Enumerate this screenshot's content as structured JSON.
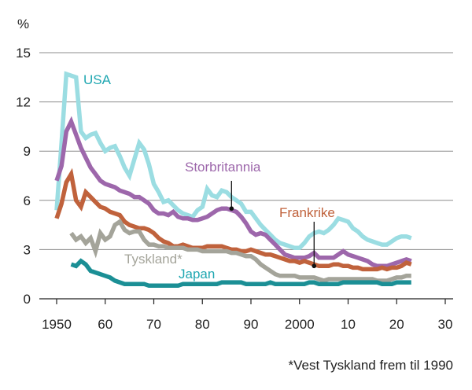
{
  "chart_data": {
    "type": "line",
    "title": "",
    "xlabel": "",
    "ylabel": "%",
    "xlim": [
      1950,
      2030
    ],
    "ylim": [
      0,
      15
    ],
    "x_ticks": [
      1950,
      1960,
      1970,
      1980,
      1990,
      2000,
      2010,
      2020,
      2030
    ],
    "x_tick_labels": [
      "1950",
      "60",
      "70",
      "80",
      "90",
      "2000",
      "10",
      "20",
      "30"
    ],
    "y_ticks": [
      0,
      3,
      6,
      9,
      12,
      15
    ],
    "y_tick_labels": [
      "0",
      "3",
      "6",
      "9",
      "12",
      "15"
    ],
    "grid": "horizontal",
    "footnote": "*Vest Tyskland frem til 1990",
    "series": [
      {
        "name": "USA",
        "color": "#9bdde2",
        "label_color": "#1fa7b1",
        "x": [
          1950,
          1951,
          1952,
          1953,
          1954,
          1955,
          1956,
          1957,
          1958,
          1959,
          1960,
          1961,
          1962,
          1963,
          1964,
          1965,
          1966,
          1967,
          1968,
          1969,
          1970,
          1971,
          1972,
          1973,
          1974,
          1975,
          1976,
          1977,
          1978,
          1979,
          1980,
          1981,
          1982,
          1983,
          1984,
          1985,
          1986,
          1987,
          1988,
          1989,
          1990,
          1991,
          1992,
          1993,
          1994,
          1995,
          1996,
          1997,
          1998,
          1999,
          2000,
          2001,
          2002,
          2003,
          2004,
          2005,
          2006,
          2007,
          2008,
          2009,
          2010,
          2011,
          2012,
          2013,
          2014,
          2015,
          2016,
          2017,
          2018,
          2019,
          2020,
          2021,
          2022,
          2023
        ],
        "values": [
          5.4,
          9.5,
          13.7,
          13.6,
          13.5,
          10.2,
          9.8,
          10.0,
          10.1,
          9.5,
          9.0,
          9.2,
          9.3,
          8.7,
          8.0,
          7.5,
          8.5,
          9.5,
          9.1,
          8.2,
          7.0,
          6.5,
          5.9,
          6.0,
          5.7,
          5.4,
          5.2,
          5.1,
          5.0,
          5.4,
          5.6,
          6.7,
          6.3,
          6.2,
          6.6,
          6.5,
          6.2,
          6.0,
          5.8,
          5.3,
          5.3,
          4.9,
          4.5,
          4.2,
          3.9,
          3.6,
          3.4,
          3.3,
          3.2,
          3.1,
          3.1,
          3.4,
          3.8,
          4.0,
          4.1,
          4.0,
          4.2,
          4.5,
          4.9,
          4.8,
          4.7,
          4.3,
          4.1,
          3.8,
          3.6,
          3.5,
          3.4,
          3.3,
          3.3,
          3.5,
          3.7,
          3.8,
          3.8,
          3.7
        ]
      },
      {
        "name": "Storbritannia",
        "color": "#9d67ab",
        "label_color": "#9d67ab",
        "x": [
          1950,
          1951,
          1952,
          1953,
          1954,
          1955,
          1956,
          1957,
          1958,
          1959,
          1960,
          1961,
          1962,
          1963,
          1964,
          1965,
          1966,
          1967,
          1968,
          1969,
          1970,
          1971,
          1972,
          1973,
          1974,
          1975,
          1976,
          1977,
          1978,
          1979,
          1980,
          1981,
          1982,
          1983,
          1984,
          1985,
          1986,
          1987,
          1988,
          1989,
          1990,
          1991,
          1992,
          1993,
          1994,
          1995,
          1996,
          1997,
          1998,
          1999,
          2000,
          2001,
          2002,
          2003,
          2004,
          2005,
          2006,
          2007,
          2008,
          2009,
          2010,
          2011,
          2012,
          2013,
          2014,
          2015,
          2016,
          2017,
          2018,
          2019,
          2020,
          2021,
          2022,
          2023
        ],
        "values": [
          7.2,
          8.1,
          10.2,
          10.8,
          10.0,
          9.2,
          8.6,
          8.0,
          7.6,
          7.2,
          7.0,
          6.9,
          6.8,
          6.6,
          6.5,
          6.4,
          6.2,
          6.2,
          6.0,
          5.8,
          5.4,
          5.2,
          5.2,
          5.1,
          5.3,
          5.0,
          4.9,
          4.9,
          4.8,
          4.8,
          4.9,
          5.0,
          5.2,
          5.4,
          5.5,
          5.5,
          5.4,
          5.3,
          5.0,
          4.6,
          4.1,
          3.9,
          4.0,
          3.9,
          3.6,
          3.3,
          3.0,
          2.7,
          2.6,
          2.5,
          2.5,
          2.5,
          2.6,
          2.8,
          2.5,
          2.5,
          2.5,
          2.5,
          2.7,
          2.9,
          2.7,
          2.6,
          2.5,
          2.4,
          2.3,
          2.1,
          2.0,
          2.0,
          2.0,
          2.1,
          2.2,
          2.3,
          2.4,
          2.3
        ]
      },
      {
        "name": "Frankrike",
        "color": "#c0623c",
        "label_color": "#c0623c",
        "x": [
          1950,
          1951,
          1952,
          1953,
          1954,
          1955,
          1956,
          1957,
          1958,
          1959,
          1960,
          1961,
          1962,
          1963,
          1964,
          1965,
          1966,
          1967,
          1968,
          1969,
          1970,
          1971,
          1972,
          1973,
          1974,
          1975,
          1976,
          1977,
          1978,
          1979,
          1980,
          1981,
          1982,
          1983,
          1984,
          1985,
          1986,
          1987,
          1988,
          1989,
          1990,
          1991,
          1992,
          1993,
          1994,
          1995,
          1996,
          1997,
          1998,
          1999,
          2000,
          2001,
          2002,
          2003,
          2004,
          2005,
          2006,
          2007,
          2008,
          2009,
          2010,
          2011,
          2012,
          2013,
          2014,
          2015,
          2016,
          2017,
          2018,
          2019,
          2020,
          2021,
          2022,
          2023
        ],
        "values": [
          4.9,
          5.8,
          7.1,
          7.6,
          6.0,
          5.6,
          6.5,
          6.2,
          5.9,
          5.6,
          5.5,
          5.3,
          5.2,
          5.1,
          4.7,
          4.5,
          4.4,
          4.3,
          4.3,
          4.2,
          4.0,
          3.7,
          3.5,
          3.4,
          3.2,
          3.2,
          3.3,
          3.2,
          3.1,
          3.1,
          3.1,
          3.2,
          3.2,
          3.2,
          3.2,
          3.1,
          3.0,
          3.0,
          2.9,
          2.9,
          3.0,
          2.9,
          2.8,
          2.7,
          2.7,
          2.6,
          2.5,
          2.4,
          2.3,
          2.3,
          2.2,
          2.3,
          2.2,
          2.1,
          2.0,
          2.0,
          2.0,
          2.1,
          2.1,
          2.0,
          2.0,
          1.9,
          1.9,
          1.8,
          1.8,
          1.8,
          1.8,
          1.9,
          1.8,
          1.9,
          1.9,
          2.0,
          2.2,
          2.1
        ]
      },
      {
        "name": "Tyskland*",
        "color": "#a4a49a",
        "label_color": "#a4a49a",
        "x": [
          1953,
          1954,
          1955,
          1956,
          1957,
          1958,
          1959,
          1960,
          1961,
          1962,
          1963,
          1964,
          1965,
          1966,
          1967,
          1968,
          1969,
          1970,
          1971,
          1972,
          1973,
          1974,
          1975,
          1976,
          1977,
          1978,
          1979,
          1980,
          1981,
          1982,
          1983,
          1984,
          1985,
          1986,
          1987,
          1988,
          1989,
          1990,
          1991,
          1992,
          1993,
          1994,
          1995,
          1996,
          1997,
          1998,
          1999,
          2000,
          2001,
          2002,
          2003,
          2004,
          2005,
          2006,
          2007,
          2008,
          2009,
          2010,
          2011,
          2012,
          2013,
          2014,
          2015,
          2016,
          2017,
          2018,
          2019,
          2020,
          2021,
          2022,
          2023
        ],
        "values": [
          4.0,
          3.6,
          3.8,
          3.4,
          3.7,
          2.9,
          4.0,
          3.6,
          3.8,
          4.5,
          4.7,
          4.2,
          4.0,
          4.1,
          4.1,
          3.6,
          3.3,
          3.3,
          3.2,
          3.2,
          3.1,
          3.1,
          3.1,
          3.1,
          3.0,
          3.0,
          3.0,
          2.9,
          2.9,
          2.9,
          2.9,
          2.9,
          2.9,
          2.8,
          2.8,
          2.7,
          2.6,
          2.6,
          2.4,
          2.1,
          1.9,
          1.7,
          1.5,
          1.4,
          1.4,
          1.4,
          1.4,
          1.3,
          1.3,
          1.3,
          1.3,
          1.2,
          1.1,
          1.2,
          1.2,
          1.2,
          1.2,
          1.2,
          1.2,
          1.2,
          1.2,
          1.2,
          1.2,
          1.1,
          1.1,
          1.1,
          1.2,
          1.3,
          1.3,
          1.4,
          1.4
        ]
      },
      {
        "name": "Japan",
        "color": "#1b8f95",
        "label_color": "#1fa7b1",
        "x": [
          1953,
          1954,
          1955,
          1956,
          1957,
          1958,
          1959,
          1960,
          1961,
          1962,
          1963,
          1964,
          1965,
          1966,
          1967,
          1968,
          1969,
          1970,
          1971,
          1972,
          1973,
          1974,
          1975,
          1976,
          1977,
          1978,
          1979,
          1980,
          1981,
          1982,
          1983,
          1984,
          1985,
          1986,
          1987,
          1988,
          1989,
          1990,
          1991,
          1992,
          1993,
          1994,
          1995,
          1996,
          1997,
          1998,
          1999,
          2000,
          2001,
          2002,
          2003,
          2004,
          2005,
          2006,
          2007,
          2008,
          2009,
          2010,
          2011,
          2012,
          2013,
          2014,
          2015,
          2016,
          2017,
          2018,
          2019,
          2020,
          2021,
          2022,
          2023
        ],
        "values": [
          2.1,
          2.0,
          2.3,
          2.1,
          1.7,
          1.6,
          1.5,
          1.4,
          1.3,
          1.1,
          1.0,
          0.9,
          0.9,
          0.9,
          0.9,
          0.9,
          0.8,
          0.8,
          0.8,
          0.8,
          0.8,
          0.8,
          0.8,
          0.9,
          0.9,
          0.9,
          0.9,
          0.9,
          0.9,
          0.9,
          0.9,
          1.0,
          1.0,
          1.0,
          1.0,
          1.0,
          0.9,
          0.9,
          0.9,
          0.9,
          0.9,
          1.0,
          0.9,
          0.9,
          0.9,
          0.9,
          0.9,
          0.9,
          0.9,
          1.0,
          1.0,
          0.9,
          0.9,
          0.9,
          0.9,
          0.9,
          1.0,
          1.0,
          1.0,
          1.0,
          1.0,
          1.0,
          1.0,
          1.0,
          0.9,
          0.9,
          0.9,
          1.0,
          1.0,
          1.0,
          1.0
        ]
      }
    ]
  }
}
